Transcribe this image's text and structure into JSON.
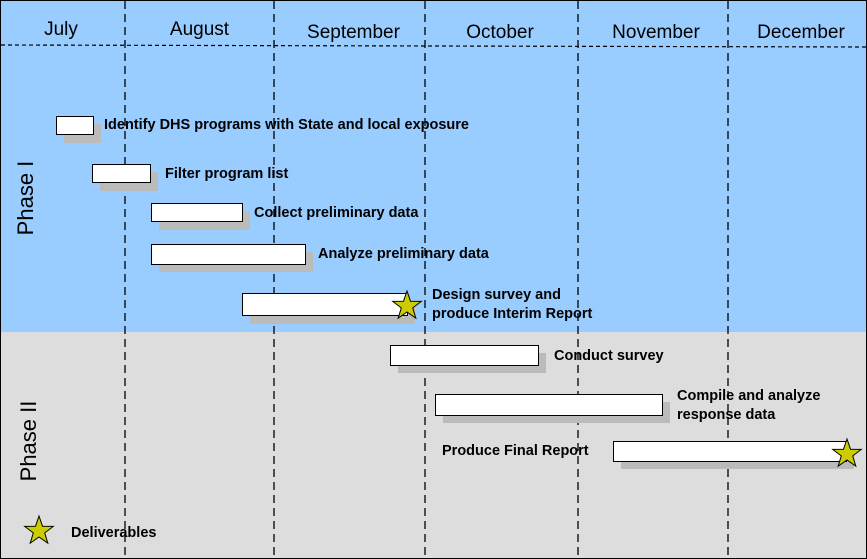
{
  "months": [
    "July",
    "August",
    "September",
    "October",
    "November",
    "December"
  ],
  "phases": [
    "Phase I",
    "Phase II"
  ],
  "tasks": [
    {
      "label": "Identify DHS programs with State and local exposure",
      "phase": "Phase I"
    },
    {
      "label": "Filter program list",
      "phase": "Phase I"
    },
    {
      "label": "Collect preliminary data",
      "phase": "Phase I"
    },
    {
      "label": "Analyze preliminary data",
      "phase": "Phase I"
    },
    {
      "label_line1": "Design survey and",
      "label_line2": "produce Interim Report",
      "phase": "Phase I",
      "deliverable": true
    },
    {
      "label": "Conduct survey",
      "phase": "Phase II"
    },
    {
      "label_line1": "Compile and analyze",
      "label_line2": "response data",
      "phase": "Phase II"
    },
    {
      "label": "Produce Final Report",
      "phase": "Phase II",
      "deliverable": true
    }
  ],
  "legend": {
    "deliverables_label": "Deliverables",
    "icon": "star-icon"
  },
  "colors": {
    "phase1": "#99ccff",
    "phase2": "#dddddd",
    "star": "#cccc00",
    "bar": "#ffffff",
    "shadow": "#bbbbbb"
  }
}
